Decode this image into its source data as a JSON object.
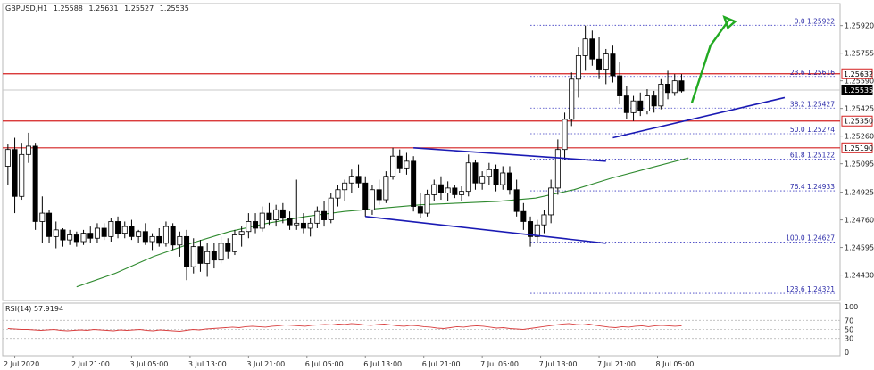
{
  "chart_data": {
    "type": "candlestick",
    "symbol_label": "GBPUSD,H1",
    "ohlc_readout": [
      "1.25588",
      "1.25631",
      "1.25527",
      "1.25535"
    ],
    "price_axis": {
      "range": [
        1.243,
        1.2603
      ],
      "ticks": [
        "1.25920",
        "1.25755",
        "1.25590",
        "1.25425",
        "1.25260",
        "1.25095",
        "1.24925",
        "1.24760",
        "1.24595",
        "1.24430"
      ]
    },
    "time_axis": {
      "labels": [
        "2 Jul 2020",
        "2 Jul 21:00",
        "3 Jul 05:00",
        "3 Jul 13:00",
        "3 Jul 21:00",
        "6 Jul 05:00",
        "6 Jul 13:00",
        "6 Jul 21:00",
        "7 Jul 05:00",
        "7 Jul 13:00",
        "7 Jul 21:00",
        "8 Jul 05:00"
      ]
    },
    "horizontal_levels": [
      {
        "price": 1.25632,
        "label": "1.25632",
        "color": "#d42020"
      },
      {
        "price": 1.2535,
        "label": "1.25350",
        "color": "#d42020"
      },
      {
        "price": 1.2519,
        "label": "1.25190",
        "color": "#d42020"
      }
    ],
    "current_price": {
      "price": 1.25535,
      "label": "1.25535"
    },
    "fibonacci": [
      {
        "price": 1.25922,
        "text": "0.0 1.25922"
      },
      {
        "price": 1.25616,
        "text": "23.6 1.25616"
      },
      {
        "price": 1.25427,
        "text": "38.2 1.25427"
      },
      {
        "price": 1.25274,
        "text": "50.0 1.25274"
      },
      {
        "price": 1.25122,
        "text": "61.8 1.25122"
      },
      {
        "price": 1.24933,
        "text": "76.4 1.24933"
      },
      {
        "price": 1.24627,
        "text": "100.0 1.24627"
      },
      {
        "price": 1.24321,
        "text": "123.6 1.24321"
      }
    ],
    "candles": [
      {
        "o": 1.2508,
        "h": 1.2521,
        "l": 1.2497,
        "c": 1.2518
      },
      {
        "o": 1.2518,
        "h": 1.2525,
        "l": 1.248,
        "c": 1.249
      },
      {
        "o": 1.249,
        "h": 1.2522,
        "l": 1.2488,
        "c": 1.2515
      },
      {
        "o": 1.2515,
        "h": 1.2528,
        "l": 1.251,
        "c": 1.252
      },
      {
        "o": 1.252,
        "h": 1.2522,
        "l": 1.247,
        "c": 1.2475
      },
      {
        "o": 1.2475,
        "h": 1.249,
        "l": 1.2462,
        "c": 1.248
      },
      {
        "o": 1.248,
        "h": 1.2482,
        "l": 1.2462,
        "c": 1.2466
      },
      {
        "o": 1.2466,
        "h": 1.2475,
        "l": 1.2459,
        "c": 1.247
      },
      {
        "o": 1.247,
        "h": 1.2471,
        "l": 1.246,
        "c": 1.2464
      },
      {
        "o": 1.2464,
        "h": 1.247,
        "l": 1.2461,
        "c": 1.2467
      },
      {
        "o": 1.2467,
        "h": 1.2469,
        "l": 1.246,
        "c": 1.2463
      },
      {
        "o": 1.2463,
        "h": 1.247,
        "l": 1.2461,
        "c": 1.2468
      },
      {
        "o": 1.2468,
        "h": 1.2472,
        "l": 1.2462,
        "c": 1.2465
      },
      {
        "o": 1.2465,
        "h": 1.2474,
        "l": 1.2462,
        "c": 1.2471
      },
      {
        "o": 1.2471,
        "h": 1.2474,
        "l": 1.2464,
        "c": 1.2466
      },
      {
        "o": 1.2466,
        "h": 1.2477,
        "l": 1.2463,
        "c": 1.2475
      },
      {
        "o": 1.2475,
        "h": 1.2478,
        "l": 1.2465,
        "c": 1.2468
      },
      {
        "o": 1.2468,
        "h": 1.2475,
        "l": 1.2465,
        "c": 1.2472
      },
      {
        "o": 1.2472,
        "h": 1.2476,
        "l": 1.2464,
        "c": 1.2466
      },
      {
        "o": 1.2466,
        "h": 1.247,
        "l": 1.2462,
        "c": 1.2469
      },
      {
        "o": 1.2469,
        "h": 1.2474,
        "l": 1.2461,
        "c": 1.2463
      },
      {
        "o": 1.2463,
        "h": 1.2468,
        "l": 1.2458,
        "c": 1.2466
      },
      {
        "o": 1.2466,
        "h": 1.2471,
        "l": 1.246,
        "c": 1.2462
      },
      {
        "o": 1.2462,
        "h": 1.2475,
        "l": 1.246,
        "c": 1.2472
      },
      {
        "o": 1.2472,
        "h": 1.2474,
        "l": 1.2458,
        "c": 1.2461
      },
      {
        "o": 1.2461,
        "h": 1.2469,
        "l": 1.2454,
        "c": 1.2466
      },
      {
        "o": 1.2466,
        "h": 1.247,
        "l": 1.244,
        "c": 1.2448
      },
      {
        "o": 1.2448,
        "h": 1.2465,
        "l": 1.2444,
        "c": 1.246
      },
      {
        "o": 1.246,
        "h": 1.2464,
        "l": 1.2445,
        "c": 1.245
      },
      {
        "o": 1.245,
        "h": 1.2462,
        "l": 1.2442,
        "c": 1.2457
      },
      {
        "o": 1.2457,
        "h": 1.2462,
        "l": 1.2447,
        "c": 1.2452
      },
      {
        "o": 1.2452,
        "h": 1.2466,
        "l": 1.245,
        "c": 1.2462
      },
      {
        "o": 1.2462,
        "h": 1.2465,
        "l": 1.2453,
        "c": 1.2457
      },
      {
        "o": 1.2457,
        "h": 1.247,
        "l": 1.2455,
        "c": 1.2467
      },
      {
        "o": 1.2467,
        "h": 1.2472,
        "l": 1.246,
        "c": 1.2469
      },
      {
        "o": 1.2469,
        "h": 1.248,
        "l": 1.2465,
        "c": 1.2475
      },
      {
        "o": 1.2475,
        "h": 1.248,
        "l": 1.2468,
        "c": 1.2471
      },
      {
        "o": 1.2471,
        "h": 1.2484,
        "l": 1.2469,
        "c": 1.248
      },
      {
        "o": 1.248,
        "h": 1.2486,
        "l": 1.2473,
        "c": 1.2476
      },
      {
        "o": 1.2476,
        "h": 1.2485,
        "l": 1.2472,
        "c": 1.2482
      },
      {
        "o": 1.2482,
        "h": 1.2486,
        "l": 1.2474,
        "c": 1.2477
      },
      {
        "o": 1.2477,
        "h": 1.2481,
        "l": 1.247,
        "c": 1.2473
      },
      {
        "o": 1.2473,
        "h": 1.25,
        "l": 1.247,
        "c": 1.2474
      },
      {
        "o": 1.2474,
        "h": 1.248,
        "l": 1.2468,
        "c": 1.2471
      },
      {
        "o": 1.2471,
        "h": 1.2477,
        "l": 1.2466,
        "c": 1.2474
      },
      {
        "o": 1.2474,
        "h": 1.2484,
        "l": 1.2471,
        "c": 1.2481
      },
      {
        "o": 1.2481,
        "h": 1.2487,
        "l": 1.2472,
        "c": 1.2476
      },
      {
        "o": 1.2476,
        "h": 1.2492,
        "l": 1.2474,
        "c": 1.2489
      },
      {
        "o": 1.2489,
        "h": 1.2497,
        "l": 1.2484,
        "c": 1.2494
      },
      {
        "o": 1.2494,
        "h": 1.25,
        "l": 1.2487,
        "c": 1.2498
      },
      {
        "o": 1.2498,
        "h": 1.2506,
        "l": 1.2492,
        "c": 1.2502
      },
      {
        "o": 1.2502,
        "h": 1.2509,
        "l": 1.2495,
        "c": 1.2498
      },
      {
        "o": 1.2498,
        "h": 1.2502,
        "l": 1.2478,
        "c": 1.2482
      },
      {
        "o": 1.2482,
        "h": 1.2497,
        "l": 1.2479,
        "c": 1.2494
      },
      {
        "o": 1.2494,
        "h": 1.25,
        "l": 1.2485,
        "c": 1.2488
      },
      {
        "o": 1.2488,
        "h": 1.2505,
        "l": 1.2486,
        "c": 1.2502
      },
      {
        "o": 1.2502,
        "h": 1.2519,
        "l": 1.25,
        "c": 1.2514
      },
      {
        "o": 1.2514,
        "h": 1.2518,
        "l": 1.2504,
        "c": 1.2507
      },
      {
        "o": 1.2507,
        "h": 1.2516,
        "l": 1.2503,
        "c": 1.2511
      },
      {
        "o": 1.2511,
        "h": 1.2514,
        "l": 1.2481,
        "c": 1.2484
      },
      {
        "o": 1.2484,
        "h": 1.2492,
        "l": 1.2477,
        "c": 1.248
      },
      {
        "o": 1.248,
        "h": 1.2494,
        "l": 1.2478,
        "c": 1.2491
      },
      {
        "o": 1.2491,
        "h": 1.25,
        "l": 1.2487,
        "c": 1.2497
      },
      {
        "o": 1.2497,
        "h": 1.2502,
        "l": 1.2488,
        "c": 1.2492
      },
      {
        "o": 1.2492,
        "h": 1.2499,
        "l": 1.2487,
        "c": 1.2495
      },
      {
        "o": 1.2495,
        "h": 1.2497,
        "l": 1.2489,
        "c": 1.2491
      },
      {
        "o": 1.2491,
        "h": 1.2496,
        "l": 1.2487,
        "c": 1.2493
      },
      {
        "o": 1.2493,
        "h": 1.2515,
        "l": 1.249,
        "c": 1.251
      },
      {
        "o": 1.251,
        "h": 1.2512,
        "l": 1.2494,
        "c": 1.2498
      },
      {
        "o": 1.2498,
        "h": 1.2505,
        "l": 1.2494,
        "c": 1.2502
      },
      {
        "o": 1.2502,
        "h": 1.251,
        "l": 1.2497,
        "c": 1.2506
      },
      {
        "o": 1.2506,
        "h": 1.2509,
        "l": 1.2493,
        "c": 1.2497
      },
      {
        "o": 1.2497,
        "h": 1.2508,
        "l": 1.2494,
        "c": 1.2504
      },
      {
        "o": 1.2504,
        "h": 1.2508,
        "l": 1.2491,
        "c": 1.2494
      },
      {
        "o": 1.2494,
        "h": 1.25,
        "l": 1.2478,
        "c": 1.2481
      },
      {
        "o": 1.2481,
        "h": 1.2486,
        "l": 1.247,
        "c": 1.2475
      },
      {
        "o": 1.2475,
        "h": 1.2478,
        "l": 1.246,
        "c": 1.2466
      },
      {
        "o": 1.2466,
        "h": 1.2476,
        "l": 1.2462,
        "c": 1.2473
      },
      {
        "o": 1.2473,
        "h": 1.2482,
        "l": 1.2468,
        "c": 1.2479
      },
      {
        "o": 1.2479,
        "h": 1.25,
        "l": 1.2474,
        "c": 1.2495
      },
      {
        "o": 1.2495,
        "h": 1.2524,
        "l": 1.2491,
        "c": 1.2518
      },
      {
        "o": 1.2518,
        "h": 1.254,
        "l": 1.2512,
        "c": 1.2536
      },
      {
        "o": 1.2536,
        "h": 1.2564,
        "l": 1.2532,
        "c": 1.256
      },
      {
        "o": 1.256,
        "h": 1.2579,
        "l": 1.2549,
        "c": 1.2574
      },
      {
        "o": 1.2574,
        "h": 1.2592,
        "l": 1.2565,
        "c": 1.2584
      },
      {
        "o": 1.2584,
        "h": 1.2589,
        "l": 1.2568,
        "c": 1.2572
      },
      {
        "o": 1.2572,
        "h": 1.2585,
        "l": 1.256,
        "c": 1.2566
      },
      {
        "o": 1.2566,
        "h": 1.2578,
        "l": 1.2557,
        "c": 1.2575
      },
      {
        "o": 1.2575,
        "h": 1.258,
        "l": 1.2558,
        "c": 1.2562
      },
      {
        "o": 1.2562,
        "h": 1.257,
        "l": 1.2545,
        "c": 1.255
      },
      {
        "o": 1.255,
        "h": 1.2556,
        "l": 1.2536,
        "c": 1.254
      },
      {
        "o": 1.254,
        "h": 1.255,
        "l": 1.2535,
        "c": 1.2547
      },
      {
        "o": 1.2547,
        "h": 1.2552,
        "l": 1.2538,
        "c": 1.2541
      },
      {
        "o": 1.2541,
        "h": 1.2554,
        "l": 1.2539,
        "c": 1.255
      },
      {
        "o": 1.255,
        "h": 1.2553,
        "l": 1.254,
        "c": 1.2544
      },
      {
        "o": 1.2544,
        "h": 1.256,
        "l": 1.2542,
        "c": 1.2557
      },
      {
        "o": 1.2557,
        "h": 1.2565,
        "l": 1.2548,
        "c": 1.2552
      },
      {
        "o": 1.2552,
        "h": 1.2563,
        "l": 1.255,
        "c": 1.2559
      },
      {
        "o": 1.2559,
        "h": 1.2563,
        "l": 1.2552,
        "c": 1.2553
      }
    ],
    "moving_average": {
      "color": "#2f8a2f",
      "values": [
        1.2436,
        1.2444,
        1.2454,
        1.2462,
        1.2469,
        1.2474,
        1.2478,
        1.2481,
        1.2483,
        1.2485,
        1.2486,
        1.2487,
        1.2489,
        1.2494,
        1.2501,
        1.2507,
        1.2513
      ]
    },
    "trend_lines": [
      {
        "name": "channel-top",
        "from": {
          "i": 59,
          "p": 1.2519
        },
        "to": {
          "i": 87,
          "p": 1.2511
        }
      },
      {
        "name": "channel-bottom",
        "from": {
          "i": 52,
          "p": 1.2478
        },
        "to": {
          "i": 87,
          "p": 1.2462
        }
      },
      {
        "name": "support-line",
        "from": {
          "i": 88,
          "p": 1.2525
        },
        "to": {
          "i": 113,
          "p": 1.2549
        }
      }
    ],
    "forecast_arrow": {
      "color": "#22aa22"
    },
    "rsi": {
      "label": "RSI(14) 57.9194",
      "range": [
        0,
        100
      ],
      "ticks": [
        "100",
        "70",
        "50",
        "30",
        "0"
      ],
      "levels": [
        70,
        50,
        30
      ],
      "color": "#d94040",
      "values": [
        52,
        51,
        50,
        50,
        49,
        48,
        49,
        50,
        48,
        47,
        48,
        49,
        48,
        50,
        49,
        48,
        47,
        49,
        48,
        49,
        50,
        48,
        47,
        49,
        48,
        47,
        46,
        48,
        50,
        49,
        51,
        52,
        53,
        54,
        55,
        54,
        56,
        57,
        56,
        55,
        57,
        58,
        60,
        59,
        58,
        57,
        59,
        60,
        61,
        60,
        62,
        61,
        63,
        62,
        60,
        59,
        61,
        62,
        60,
        58,
        57,
        59,
        58,
        56,
        55,
        53,
        52,
        54,
        56,
        55,
        57,
        58,
        57,
        55,
        53,
        54,
        52,
        51,
        50,
        52,
        54,
        56,
        58,
        60,
        62,
        63,
        61,
        60,
        62,
        59,
        57,
        55,
        54,
        56,
        55,
        57,
        58,
        56,
        58,
        59,
        58,
        57,
        58
      ]
    }
  }
}
